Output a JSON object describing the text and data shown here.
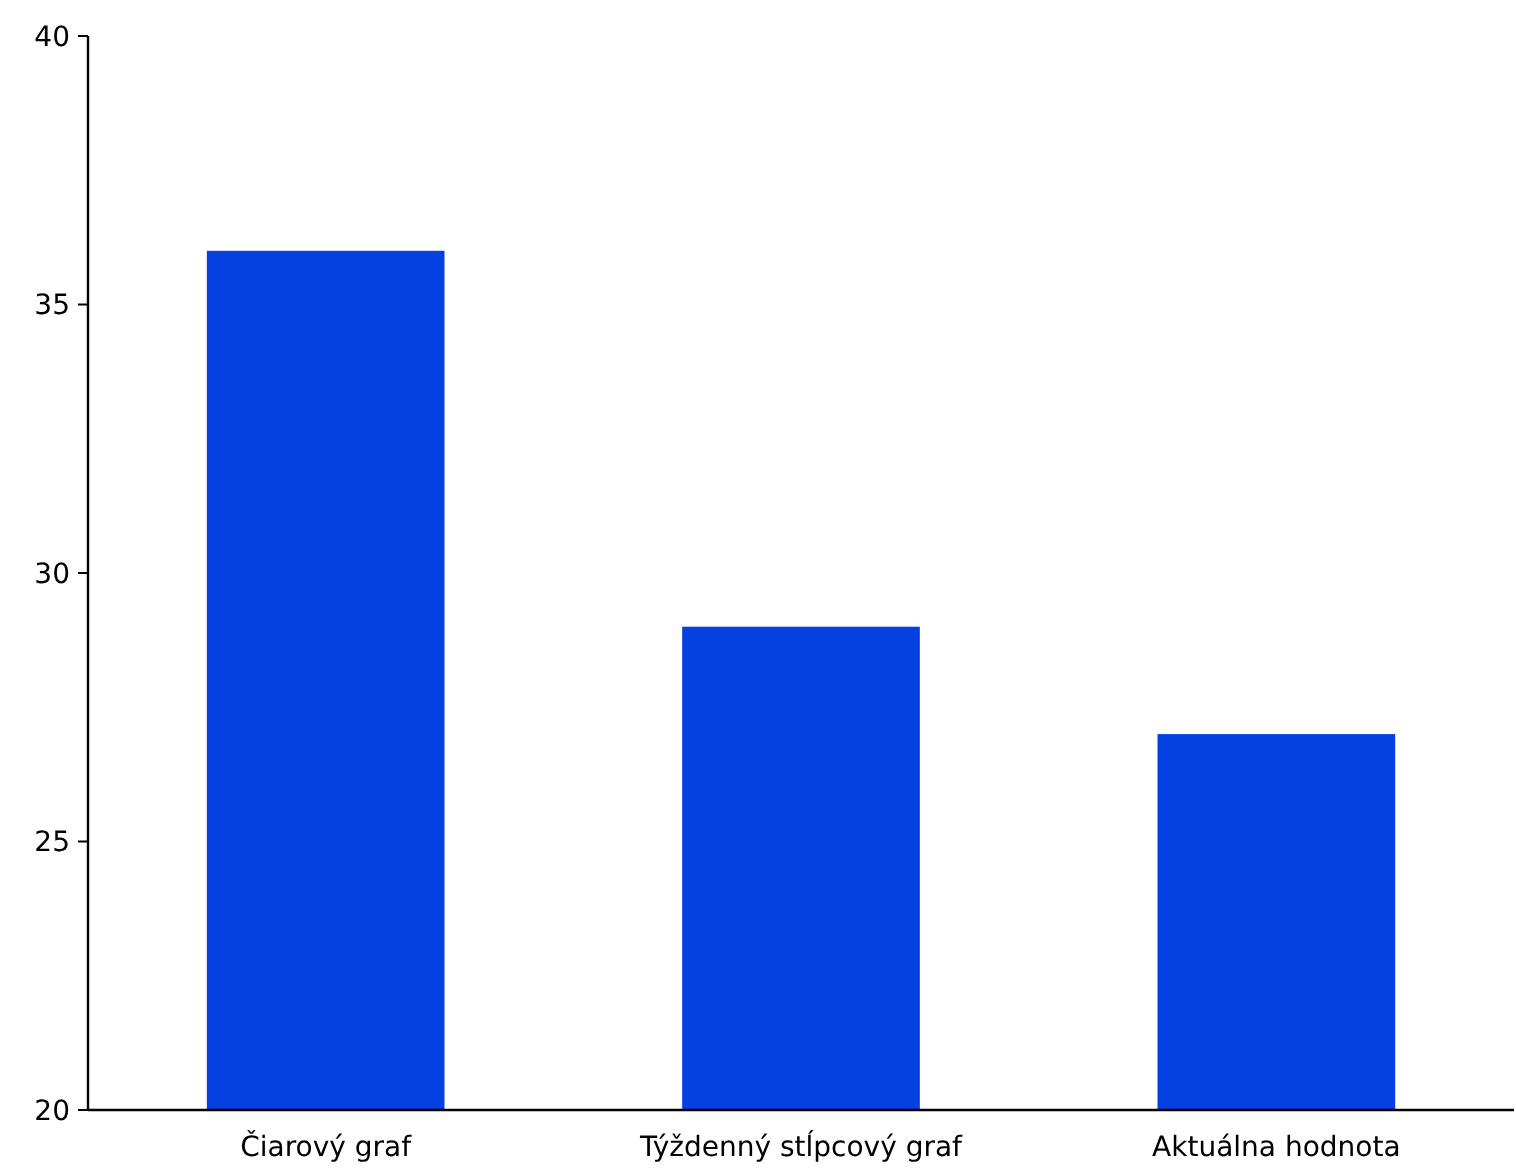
{
  "chart_data": {
    "type": "bar",
    "categories": [
      "Čiarový graf",
      "Týždenný stĺpcový graf",
      "Aktuálna hodnota"
    ],
    "values": [
      36,
      29,
      27
    ],
    "color": "#0540e0",
    "ylim": [
      20,
      40
    ],
    "yticks": [
      20,
      25,
      30,
      35,
      40
    ]
  }
}
